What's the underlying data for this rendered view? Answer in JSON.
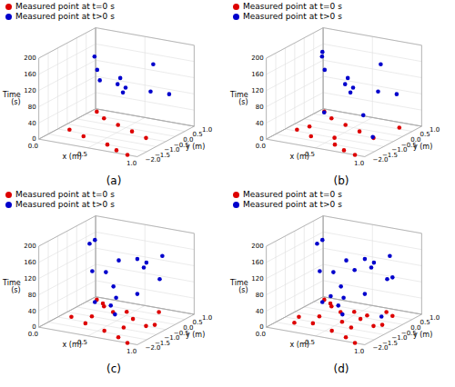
{
  "chart_data": [
    {
      "type": "scatter3d",
      "title": "(a)",
      "xlabel": "x (m)",
      "ylabel": "y (m)",
      "zlabel": "Time\n(s)",
      "xlim": [
        0.0,
        1.0
      ],
      "ylim": [
        -2.0,
        1.0
      ],
      "zlim": [
        0,
        200
      ],
      "xticks": [
        {
          "value": 0,
          "label": "0.0"
        },
        0.5,
        {
          "value": 1,
          "label": "1.0"
        }
      ],
      "yticks": [
        {
          "value": -2,
          "label": "−2.0"
        },
        {
          "value": -1.5,
          "label": "−1.5"
        },
        {
          "value": -1,
          "label": "−1.0"
        },
        {
          "value": -0.5,
          "label": "−0.5"
        },
        {
          "value": 0,
          "label": "0.0"
        },
        0.5,
        {
          "value": 1,
          "label": "1.0"
        }
      ],
      "zticks": [
        0,
        40,
        80,
        120,
        160,
        200
      ],
      "grid": true,
      "legend": "upper left",
      "series": [
        {
          "name": "Measured point at t=0 s",
          "color": "#dd0000",
          "values": [
            [
              0.05,
              0.8,
              0
            ],
            [
              0.2,
              0.4,
              0
            ],
            [
              0.4,
              0.1,
              0
            ],
            [
              0.6,
              -0.2,
              0
            ],
            [
              0.8,
              -0.5,
              0
            ],
            [
              0.1,
              -0.9,
              0
            ],
            [
              0.3,
              -1.2,
              0
            ],
            [
              0.6,
              -1.5,
              0
            ],
            [
              0.75,
              -1.8,
              0
            ],
            [
              0.9,
              -2.0,
              0
            ]
          ]
        },
        {
          "name": "Measured point at t>0 s",
          "color": "#0000cc",
          "values": [
            [
              0.1,
              0.7,
              82
            ],
            [
              0.15,
              0.3,
              120
            ],
            [
              0.2,
              -0.1,
              165
            ],
            [
              0.4,
              0.5,
              82
            ],
            [
              0.45,
              0.1,
              82
            ],
            [
              0.5,
              -0.3,
              130
            ],
            [
              0.55,
              -0.7,
              127
            ],
            [
              0.7,
              0.4,
              155
            ],
            [
              0.75,
              0.0,
              100
            ],
            [
              0.9,
              0.2,
              95
            ]
          ]
        }
      ]
    },
    {
      "type": "scatter3d",
      "title": "(b)",
      "xlabel": "x (m)",
      "ylabel": "y (m)",
      "zlabel": "Time\n(s)",
      "xlim": [
        0.0,
        1.0
      ],
      "ylim": [
        -2.0,
        1.0
      ],
      "zlim": [
        0,
        200
      ],
      "xticks": [
        {
          "value": 0,
          "label": "0.0"
        },
        0.5,
        {
          "value": 1,
          "label": "1.0"
        }
      ],
      "yticks": [
        {
          "value": -2,
          "label": "−2.0"
        },
        {
          "value": -1.5,
          "label": "−1.5"
        },
        {
          "value": -1,
          "label": "−1.0"
        },
        {
          "value": -0.5,
          "label": "−0.5"
        },
        {
          "value": 0,
          "label": "0.0"
        },
        0.5,
        {
          "value": 1,
          "label": "1.0"
        }
      ],
      "zticks": [
        0,
        40,
        80,
        120,
        160,
        200
      ],
      "grid": true,
      "legend": "upper left",
      "series": [
        {
          "name": "Measured point at t=0 s",
          "color": "#dd0000",
          "values": [
            [
              0.05,
              0.8,
              0
            ],
            [
              0.2,
              0.4,
              0
            ],
            [
              0.4,
              0.1,
              0
            ],
            [
              0.6,
              -0.2,
              0
            ],
            [
              0.8,
              -0.5,
              0
            ],
            [
              0.1,
              -0.9,
              0
            ],
            [
              0.3,
              -1.2,
              0
            ],
            [
              0.6,
              -1.5,
              0
            ],
            [
              0.75,
              -1.8,
              0
            ],
            [
              0.9,
              -2.0,
              0
            ],
            [
              0.15,
              -0.5,
              0
            ],
            [
              0.5,
              -1.0,
              0
            ],
            [
              0.85,
              0.6,
              0
            ]
          ]
        },
        {
          "name": "Measured point at t>0 s",
          "color": "#0000cc",
          "values": [
            [
              0.05,
              0.7,
              150
            ],
            [
              0.15,
              0.3,
              120
            ],
            [
              0.2,
              -0.1,
              165
            ],
            [
              0.4,
              0.5,
              82
            ],
            [
              0.45,
              0.1,
              82
            ],
            [
              0.5,
              -0.3,
              130
            ],
            [
              0.55,
              -0.7,
              127
            ],
            [
              0.7,
              0.4,
              155
            ],
            [
              0.75,
              0.0,
              100
            ],
            [
              0.9,
              0.2,
              95
            ],
            [
              0.28,
              -0.4,
              38
            ],
            [
              0.6,
              0.0,
              35
            ],
            [
              0.85,
              -0.8,
              12
            ]
          ]
        }
      ]
    },
    {
      "type": "scatter3d",
      "title": "(c)",
      "xlabel": "x (m)",
      "ylabel": "y (m)",
      "zlabel": "Time\n(s)",
      "xlim": [
        0.0,
        1.0
      ],
      "ylim": [
        -2.0,
        1.0
      ],
      "zlim": [
        0,
        200
      ],
      "xticks": [
        {
          "value": 0,
          "label": "0.0"
        },
        0.5,
        {
          "value": 1,
          "label": "1.0"
        }
      ],
      "yticks": [
        {
          "value": -2,
          "label": "−2.0"
        },
        {
          "value": -1.5,
          "label": "−1.5"
        },
        {
          "value": -1,
          "label": "−1.0"
        },
        {
          "value": -0.5,
          "label": "−0.5"
        },
        {
          "value": 0,
          "label": "0.0"
        },
        0.5,
        {
          "value": 1,
          "label": "1.0"
        }
      ],
      "zticks": [
        0,
        40,
        80,
        120,
        160,
        200
      ],
      "grid": true,
      "legend": "upper left",
      "series": [
        {
          "name": "Measured point at t=0 s",
          "color": "#dd0000",
          "values": [
            [
              0.05,
              0.8,
              0
            ],
            [
              0.2,
              0.4,
              0
            ],
            [
              0.35,
              0.1,
              0
            ],
            [
              0.6,
              -0.15,
              0
            ],
            [
              0.8,
              -0.5,
              0
            ],
            [
              0.1,
              -0.8,
              0
            ],
            [
              0.3,
              -1.1,
              0
            ],
            [
              0.55,
              -1.4,
              0
            ],
            [
              0.75,
              -1.7,
              0
            ],
            [
              0.9,
              -2.0,
              0
            ],
            [
              0.15,
              0.6,
              0
            ],
            [
              0.45,
              0.3,
              0
            ],
            [
              0.65,
              -0.9,
              0
            ],
            [
              0.85,
              -0.3,
              0
            ],
            [
              0.25,
              -0.5,
              0
            ],
            [
              0.7,
              0.7,
              0
            ]
          ]
        },
        {
          "name": "Measured point at t>0 s",
          "color": "#0000cc",
          "values": [
            [
              0.05,
              0.7,
              150
            ],
            [
              0.1,
              0.3,
              85
            ],
            [
              0.15,
              -0.1,
              165
            ],
            [
              0.35,
              0.4,
              120
            ],
            [
              0.4,
              0.0,
              40
            ],
            [
              0.45,
              -0.4,
              80
            ],
            [
              0.5,
              -0.8,
              45
            ],
            [
              0.65,
              0.3,
              130
            ],
            [
              0.7,
              -0.1,
              130
            ],
            [
              0.85,
              0.1,
              160
            ],
            [
              0.9,
              -0.3,
              115
            ],
            [
              0.75,
              -0.7,
              82
            ],
            [
              0.6,
              -1.1,
              35
            ],
            [
              0.3,
              -0.6,
              40
            ],
            [
              0.5,
              0.6,
              125
            ],
            [
              0.2,
              0.5,
              82
            ]
          ]
        }
      ]
    },
    {
      "type": "scatter3d",
      "title": "(d)",
      "xlabel": "x (m)",
      "ylabel": "y (m)",
      "zlabel": "Time\n(s)",
      "xlim": [
        0.0,
        1.0
      ],
      "ylim": [
        -2.0,
        1.0
      ],
      "zlim": [
        0,
        200
      ],
      "xticks": [
        {
          "value": 0,
          "label": "0.0"
        },
        0.5,
        {
          "value": 1,
          "label": "1.0"
        }
      ],
      "yticks": [
        {
          "value": -2,
          "label": "−2.0"
        },
        {
          "value": -1.5,
          "label": "−1.5"
        },
        {
          "value": -1,
          "label": "−1.0"
        },
        {
          "value": -0.5,
          "label": "−0.5"
        },
        {
          "value": 0,
          "label": "0.0"
        },
        0.5,
        {
          "value": 1,
          "label": "1.0"
        }
      ],
      "zticks": [
        0,
        40,
        80,
        120,
        160,
        200
      ],
      "grid": true,
      "legend": "upper left",
      "series": [
        {
          "name": "Measured point at t=0 s",
          "color": "#dd0000",
          "values": [
            [
              0.05,
              0.8,
              0
            ],
            [
              0.2,
              0.4,
              0
            ],
            [
              0.35,
              0.1,
              0
            ],
            [
              0.6,
              -0.15,
              0
            ],
            [
              0.8,
              -0.5,
              0
            ],
            [
              0.1,
              -0.8,
              0
            ],
            [
              0.3,
              -1.1,
              0
            ],
            [
              0.55,
              -1.4,
              0
            ],
            [
              0.75,
              -1.7,
              0
            ],
            [
              0.9,
              -2.0,
              0
            ],
            [
              0.15,
              0.6,
              0
            ],
            [
              0.45,
              0.3,
              0
            ],
            [
              0.65,
              -0.9,
              0
            ],
            [
              0.85,
              -0.3,
              0
            ],
            [
              0.25,
              -0.5,
              0
            ],
            [
              0.7,
              0.7,
              0
            ],
            [
              0.5,
              -0.6,
              0
            ],
            [
              0.8,
              0.5,
              0
            ],
            [
              0.15,
              -1.3,
              0
            ],
            [
              0.6,
              0.2,
              0
            ]
          ]
        },
        {
          "name": "Measured point at t>0 s",
          "color": "#0000cc",
          "values": [
            [
              0.05,
              0.7,
              150
            ],
            [
              0.1,
              0.3,
              85
            ],
            [
              0.15,
              -0.1,
              165
            ],
            [
              0.35,
              0.4,
              120
            ],
            [
              0.4,
              0.0,
              40
            ],
            [
              0.45,
              -0.4,
              80
            ],
            [
              0.5,
              -0.8,
              45
            ],
            [
              0.65,
              0.3,
              130
            ],
            [
              0.7,
              -0.1,
              130
            ],
            [
              0.85,
              0.1,
              160
            ],
            [
              0.9,
              -0.3,
              115
            ],
            [
              0.75,
              -0.7,
              82
            ],
            [
              0.6,
              -1.1,
              35
            ],
            [
              0.3,
              -0.6,
              40
            ],
            [
              0.5,
              0.6,
              125
            ],
            [
              0.2,
              0.5,
              82
            ],
            [
              0.55,
              -0.2,
              120
            ],
            [
              0.8,
              0.5,
              95
            ],
            [
              0.25,
              0.1,
              35
            ],
            [
              0.9,
              -0.6,
              30
            ]
          ]
        }
      ]
    }
  ]
}
